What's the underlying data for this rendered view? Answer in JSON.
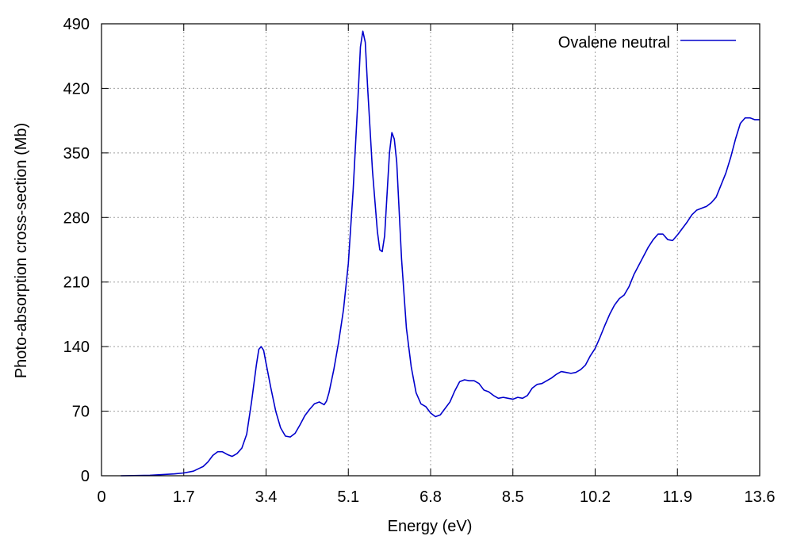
{
  "chart_data": {
    "type": "line",
    "title": "",
    "xlabel": "Energy (eV)",
    "ylabel": "Photo-absorption cross-section (Mb)",
    "xlim": [
      0,
      13.6
    ],
    "ylim": [
      0,
      490
    ],
    "x_ticks": [
      0,
      1.7,
      3.4,
      5.1,
      6.8,
      8.5,
      10.2,
      11.9,
      13.6
    ],
    "x_tick_labels": [
      "0",
      "1.7",
      "3.4",
      "5.1",
      "6.8",
      "8.5",
      "10.2",
      "11.9",
      "13.6"
    ],
    "y_ticks": [
      0,
      70,
      140,
      210,
      280,
      350,
      420,
      490
    ],
    "y_tick_labels": [
      "0",
      "70",
      "140",
      "210",
      "280",
      "350",
      "420",
      "490"
    ],
    "grid": true,
    "legend_position": "top-right",
    "series": [
      {
        "name": "Ovalene neutral",
        "color": "#0000cc",
        "points": [
          [
            0.4,
            0
          ],
          [
            1.0,
            0.5
          ],
          [
            1.5,
            2
          ],
          [
            1.7,
            3
          ],
          [
            1.9,
            5
          ],
          [
            2.1,
            10
          ],
          [
            2.2,
            15
          ],
          [
            2.3,
            22
          ],
          [
            2.4,
            26
          ],
          [
            2.5,
            26
          ],
          [
            2.6,
            23
          ],
          [
            2.7,
            21
          ],
          [
            2.8,
            24
          ],
          [
            2.9,
            30
          ],
          [
            3.0,
            45
          ],
          [
            3.1,
            80
          ],
          [
            3.2,
            120
          ],
          [
            3.25,
            137
          ],
          [
            3.3,
            140
          ],
          [
            3.35,
            136
          ],
          [
            3.4,
            122
          ],
          [
            3.5,
            95
          ],
          [
            3.6,
            70
          ],
          [
            3.7,
            52
          ],
          [
            3.8,
            43
          ],
          [
            3.9,
            42
          ],
          [
            4.0,
            46
          ],
          [
            4.1,
            55
          ],
          [
            4.2,
            65
          ],
          [
            4.3,
            72
          ],
          [
            4.4,
            78
          ],
          [
            4.5,
            80
          ],
          [
            4.6,
            77
          ],
          [
            4.65,
            81
          ],
          [
            4.7,
            90
          ],
          [
            4.8,
            115
          ],
          [
            4.9,
            145
          ],
          [
            5.0,
            180
          ],
          [
            5.1,
            230
          ],
          [
            5.2,
            310
          ],
          [
            5.3,
            410
          ],
          [
            5.35,
            465
          ],
          [
            5.4,
            482
          ],
          [
            5.45,
            470
          ],
          [
            5.5,
            420
          ],
          [
            5.6,
            330
          ],
          [
            5.7,
            265
          ],
          [
            5.75,
            245
          ],
          [
            5.8,
            243
          ],
          [
            5.85,
            260
          ],
          [
            5.9,
            305
          ],
          [
            5.95,
            350
          ],
          [
            6.0,
            372
          ],
          [
            6.05,
            365
          ],
          [
            6.1,
            340
          ],
          [
            6.2,
            235
          ],
          [
            6.3,
            160
          ],
          [
            6.4,
            118
          ],
          [
            6.5,
            90
          ],
          [
            6.6,
            78
          ],
          [
            6.7,
            75
          ],
          [
            6.8,
            68
          ],
          [
            6.9,
            64
          ],
          [
            7.0,
            66
          ],
          [
            7.2,
            80
          ],
          [
            7.3,
            92
          ],
          [
            7.4,
            102
          ],
          [
            7.5,
            104
          ],
          [
            7.6,
            103
          ],
          [
            7.7,
            103
          ],
          [
            7.8,
            100
          ],
          [
            7.9,
            93
          ],
          [
            8.0,
            91
          ],
          [
            8.1,
            87
          ],
          [
            8.2,
            84
          ],
          [
            8.3,
            85
          ],
          [
            8.4,
            84
          ],
          [
            8.5,
            83
          ],
          [
            8.6,
            85
          ],
          [
            8.7,
            84
          ],
          [
            8.8,
            87
          ],
          [
            8.9,
            95
          ],
          [
            9.0,
            99
          ],
          [
            9.1,
            100
          ],
          [
            9.2,
            103
          ],
          [
            9.3,
            106
          ],
          [
            9.4,
            110
          ],
          [
            9.5,
            113
          ],
          [
            9.6,
            112
          ],
          [
            9.7,
            111
          ],
          [
            9.8,
            112
          ],
          [
            9.9,
            115
          ],
          [
            10.0,
            120
          ],
          [
            10.1,
            130
          ],
          [
            10.2,
            138
          ],
          [
            10.3,
            150
          ],
          [
            10.4,
            163
          ],
          [
            10.5,
            175
          ],
          [
            10.6,
            185
          ],
          [
            10.7,
            192
          ],
          [
            10.8,
            196
          ],
          [
            10.9,
            205
          ],
          [
            11.0,
            218
          ],
          [
            11.1,
            228
          ],
          [
            11.2,
            238
          ],
          [
            11.3,
            248
          ],
          [
            11.4,
            256
          ],
          [
            11.5,
            262
          ],
          [
            11.6,
            262
          ],
          [
            11.7,
            256
          ],
          [
            11.8,
            255
          ],
          [
            11.9,
            261
          ],
          [
            12.0,
            268
          ],
          [
            12.1,
            275
          ],
          [
            12.2,
            283
          ],
          [
            12.3,
            288
          ],
          [
            12.4,
            290
          ],
          [
            12.5,
            292
          ],
          [
            12.6,
            296
          ],
          [
            12.7,
            302
          ],
          [
            12.8,
            315
          ],
          [
            12.9,
            328
          ],
          [
            13.0,
            345
          ],
          [
            13.1,
            365
          ],
          [
            13.2,
            382
          ],
          [
            13.3,
            388
          ],
          [
            13.4,
            388
          ],
          [
            13.5,
            386
          ],
          [
            13.6,
            386
          ]
        ]
      }
    ]
  }
}
